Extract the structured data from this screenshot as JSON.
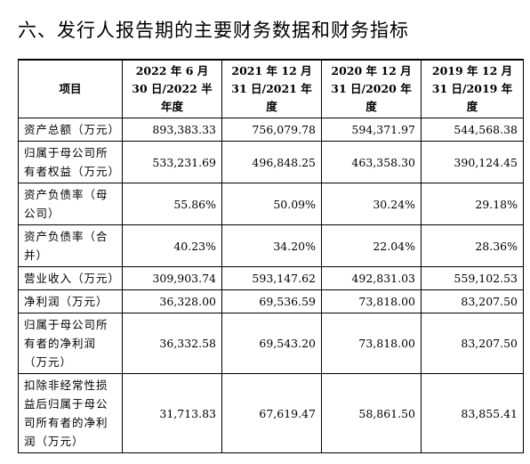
{
  "title": "六、发行人报告期的主要财务数据和财务指标",
  "table": {
    "headers": [
      "项目",
      "2022 年 6 月 30 日/2022 半年度",
      "2021 年 12 月 31 日/2021 年度",
      "2020 年 12 月 31 日/2020 年度",
      "2019 年 12 月 31 日/2019 年度"
    ],
    "rows": [
      {
        "label": "资产总额（万元）",
        "values": [
          "893,383.33",
          "756,079.78",
          "594,371.97",
          "544,568.38"
        ]
      },
      {
        "label": "归属于母公司所有者权益（万元）",
        "values": [
          "533,231.69",
          "496,848.25",
          "463,358.30",
          "390,124.45"
        ]
      },
      {
        "label": "资产负债率（母公司）",
        "values": [
          "55.86%",
          "50.09%",
          "30.24%",
          "29.18%"
        ]
      },
      {
        "label": "资产负债率（合并）",
        "values": [
          "40.23%",
          "34.20%",
          "22.04%",
          "28.36%"
        ]
      },
      {
        "label": "营业收入（万元）",
        "values": [
          "309,903.74",
          "593,147.62",
          "492,831.03",
          "559,102.53"
        ]
      },
      {
        "label": "净利润（万元）",
        "values": [
          "36,328.00",
          "69,536.59",
          "73,818.00",
          "83,207.50"
        ]
      },
      {
        "label": "归属于母公司所有者的净利润（万元）",
        "values": [
          "36,332.58",
          "69,543.20",
          "73,818.00",
          "83,207.50"
        ]
      },
      {
        "label": "扣除非经常性损益后归属于母公司所有者的净利润（万元）",
        "values": [
          "31,713.83",
          "67,619.47",
          "58,861.50",
          "83,855.41"
        ]
      }
    ]
  }
}
